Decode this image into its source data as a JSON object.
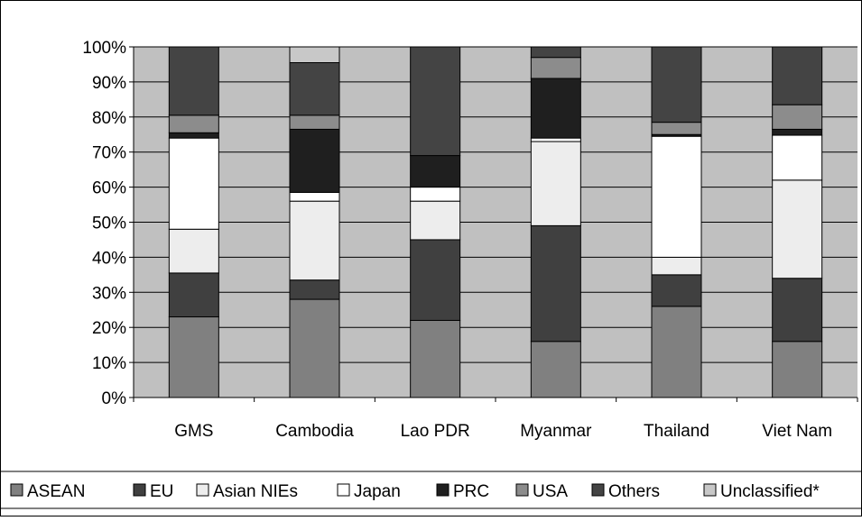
{
  "colors": {
    "plot_bg": "#c0c0c0",
    "grid": "#000000",
    "frame": "#000000",
    "ASEAN": "#808080",
    "EU": "#404040",
    "Asian NIEs": "#ededed",
    "Japan": "#ffffff",
    "PRC": "#1f1f1f",
    "USA": "#8c8c8c",
    "Others": "#444444",
    "Unclassified*": "#c8c8c8"
  },
  "chart_data": {
    "type": "bar",
    "stacked": true,
    "title": "",
    "xlabel": "",
    "ylabel": "",
    "ylim": [
      0,
      100
    ],
    "y_ticks": [
      "0%",
      "10%",
      "20%",
      "30%",
      "40%",
      "50%",
      "60%",
      "70%",
      "80%",
      "90%",
      "100%"
    ],
    "grid": true,
    "legend_position": "bottom",
    "categories": [
      "GMS",
      "Cambodia",
      "Lao PDR",
      "Myanmar",
      "Thailand",
      "Viet Nam"
    ],
    "series": [
      {
        "name": "ASEAN",
        "values": [
          23,
          28,
          22,
          16,
          26,
          16
        ]
      },
      {
        "name": "EU",
        "values": [
          12.5,
          5.5,
          23,
          33,
          9,
          18
        ]
      },
      {
        "name": "Asian NIEs",
        "values": [
          12.5,
          22.5,
          11,
          24,
          5,
          28
        ]
      },
      {
        "name": "Japan",
        "values": [
          26,
          2.5,
          4,
          1,
          34.5,
          12.8
        ]
      },
      {
        "name": "PRC",
        "values": [
          1.5,
          18,
          9,
          17,
          0.5,
          1.7
        ]
      },
      {
        "name": "USA",
        "values": [
          5,
          4,
          0,
          6,
          3.5,
          7
        ]
      },
      {
        "name": "Others",
        "values": [
          19.5,
          15,
          31,
          3,
          21.5,
          16.5
        ]
      },
      {
        "name": "Unclassified*",
        "values": [
          0,
          4.5,
          0,
          0,
          0,
          0
        ]
      }
    ]
  }
}
